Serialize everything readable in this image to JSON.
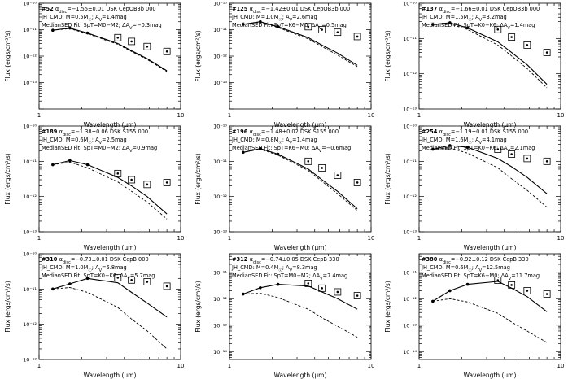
{
  "common": {
    "xlabel": "Wavelength (μm)",
    "ylabel": "Flux (ergs/cm²/s)",
    "xlim": [
      1,
      10
    ],
    "xticks": [
      "1",
      "10"
    ]
  },
  "chart_data": [
    {
      "type": "line",
      "panel": 1,
      "id": "#52",
      "line1": "α_disc=−1.55±0.01 DSK CepOB3b 000",
      "line2": "JH_CMD: M=0.5M☉; A_V=1.4mag",
      "line3": "MedianSED Fit: SpT=M0−M2; ΔA_V=−0.3mag",
      "ylim_exp": [
        -14,
        -10
      ],
      "yticks": [
        "10⁻¹⁰",
        "10⁻¹¹",
        "10⁻¹²",
        "10⁻¹³"
      ],
      "series": [
        {
          "name": "Observed SED",
          "style": "solid",
          "x": [
            1.25,
            1.65,
            2.2,
            3.6,
            4.5,
            5.8,
            8.0
          ],
          "y": [
            9.5e-12,
            1.15e-11,
            7.5e-12,
            3e-12,
            1.6e-12,
            8e-13,
            2.8e-13
          ]
        },
        {
          "name": "Median SED fit",
          "style": "dashed",
          "x": [
            1.25,
            1.65,
            2.2,
            3.6,
            4.5,
            5.8,
            8.0
          ],
          "y": [
            9.5e-12,
            1.1e-11,
            7e-12,
            2.8e-12,
            1.5e-12,
            7.5e-13,
            2.6e-13
          ]
        },
        {
          "name": "Excess points",
          "style": "box",
          "x": [
            3.6,
            4.5,
            5.8,
            8.0
          ],
          "y": [
            5e-12,
            3.6e-12,
            2.3e-12,
            1.5e-12
          ]
        }
      ]
    },
    {
      "type": "line",
      "panel": 2,
      "id": "#125",
      "line1": "α_disc=−1.42±0.01 DSK CepOB3b 000",
      "line2": "JH_CMD: M=1.0M☉; A_V=2.6mag",
      "line3": "MedianSED Fit: SpT=K6−M0; ΔA_V=0.5mag",
      "ylim_exp": [
        -14,
        -10
      ],
      "yticks": [
        "10⁻¹⁰",
        "10⁻¹¹",
        "10⁻¹²",
        "10⁻¹³"
      ],
      "series": [
        {
          "name": "Observed SED",
          "style": "solid",
          "x": [
            1.25,
            1.65,
            2.2,
            3.6,
            4.5,
            5.8,
            8.0
          ],
          "y": [
            1.6e-11,
            2e-11,
            1.3e-11,
            5e-12,
            2.6e-12,
            1.3e-12,
            4.5e-13
          ]
        },
        {
          "name": "Median SED fit",
          "style": "dashed",
          "x": [
            1.25,
            1.65,
            2.2,
            3.6,
            4.5,
            5.8,
            8.0
          ],
          "y": [
            1.6e-11,
            1.9e-11,
            1.2e-11,
            4.5e-12,
            2.3e-12,
            1.1e-12,
            4e-13
          ]
        },
        {
          "name": "Excess points",
          "style": "box",
          "x": [
            3.6,
            4.5,
            5.8,
            8.0
          ],
          "y": [
            1.3e-11,
            1e-11,
            8e-12,
            5.5e-12
          ]
        }
      ]
    },
    {
      "type": "line",
      "panel": 3,
      "id": "#137",
      "line1": "α_disc=−1.66±0.01 DSK CepOB3b 000",
      "line2": "JH_CMD: M=1.5M☉; A_V=3.2mag",
      "line3": "MedianSED Fit: SpT=K0−K6; ΔA_V=1.4mag",
      "ylim_exp": [
        -13,
        -10
      ],
      "yticks": [
        "10⁻¹⁰",
        "10⁻¹¹",
        "10⁻¹²",
        "10⁻¹³"
      ],
      "series": [
        {
          "name": "Observed SED",
          "style": "solid",
          "x": [
            1.25,
            1.65,
            2.2,
            3.6,
            4.5,
            5.8,
            8.0
          ],
          "y": [
            2.5e-11,
            2.8e-11,
            2e-11,
            8e-12,
            4e-12,
            1.8e-12,
            5e-13
          ]
        },
        {
          "name": "Median SED fit",
          "style": "dashed",
          "x": [
            1.25,
            1.65,
            2.2,
            3.6,
            4.5,
            5.8,
            8.0
          ],
          "y": [
            2.5e-11,
            2.6e-11,
            1.8e-11,
            6.5e-12,
            3.2e-12,
            1.4e-12,
            4e-13
          ]
        },
        {
          "name": "Excess points",
          "style": "box",
          "x": [
            3.6,
            4.5,
            5.8,
            8.0
          ],
          "y": [
            1.8e-11,
            1.1e-11,
            6.5e-12,
            4e-12
          ]
        }
      ]
    },
    {
      "type": "line",
      "panel": 4,
      "id": "#189",
      "line1": "α_disc=−1.38±0.06 DSK S155 000",
      "line2": "JH_CMD: M=0.6M☉; A_V=2.5mag",
      "line3": "MedianSED Fit: SpT=M0−M2; ΔA_V=0.9mag",
      "ylim_exp": [
        -13,
        -10
      ],
      "yticks": [
        "10⁻¹⁰",
        "10⁻¹¹",
        "10⁻¹²",
        "10⁻¹³"
      ],
      "series": [
        {
          "name": "Observed SED",
          "style": "solid",
          "x": [
            1.25,
            1.65,
            2.2,
            3.6,
            4.5,
            5.8,
            8.0
          ],
          "y": [
            8e-12,
            1.05e-11,
            8e-12,
            3.5e-12,
            2e-12,
            1e-12,
            3.2e-13
          ]
        },
        {
          "name": "Median SED fit",
          "style": "dashed",
          "x": [
            1.25,
            1.65,
            2.2,
            3.6,
            4.5,
            5.8,
            8.0
          ],
          "y": [
            8e-12,
            9.5e-12,
            6.5e-12,
            2.6e-12,
            1.4e-12,
            7e-13,
            2.3e-13
          ]
        },
        {
          "name": "Excess points",
          "style": "box",
          "x": [
            3.6,
            4.5,
            5.8,
            8.0
          ],
          "y": [
            4.5e-12,
            3e-12,
            2.2e-12,
            2.5e-12
          ]
        }
      ]
    },
    {
      "type": "line",
      "panel": 5,
      "id": "#196",
      "line1": "α_disc=−1.48±0.02 DSK S155 000",
      "line2": "JH_CMD: M=0.8M☉; A_V=1.4mag",
      "line3": "MedianSED Fit: SpT=K6−M0; ΔA_V=−0.6mag",
      "ylim_exp": [
        -13,
        -10
      ],
      "yticks": [
        "10⁻¹⁰",
        "10⁻¹¹",
        "10⁻¹²",
        "10⁻¹³"
      ],
      "series": [
        {
          "name": "Observed SED",
          "style": "solid",
          "x": [
            1.25,
            1.65,
            2.2,
            3.6,
            4.5,
            5.8,
            8.0
          ],
          "y": [
            1.8e-11,
            2.3e-11,
            1.6e-11,
            6e-12,
            3e-12,
            1.4e-12,
            4.5e-13
          ]
        },
        {
          "name": "Median SED fit",
          "style": "dashed",
          "x": [
            1.25,
            1.65,
            2.2,
            3.6,
            4.5,
            5.8,
            8.0
          ],
          "y": [
            1.8e-11,
            2.2e-11,
            1.5e-11,
            5.5e-12,
            2.7e-12,
            1.2e-12,
            4e-13
          ]
        },
        {
          "name": "Excess points",
          "style": "box",
          "x": [
            3.6,
            4.5,
            5.8,
            8.0
          ],
          "y": [
            1e-11,
            6.5e-12,
            4e-12,
            2.5e-12
          ]
        }
      ]
    },
    {
      "type": "line",
      "panel": 6,
      "id": "#254",
      "line1": "α_disc=−1.19±0.01 DSK S155 000",
      "line2": "JH_CMD: M=1.6M☉; A_V=4.1mag",
      "line3": "MedianSED Fit: SpT=K0−K6; ΔA_V=2.1mag",
      "ylim_exp": [
        -13,
        -10
      ],
      "yticks": [
        "10⁻¹⁰",
        "10⁻¹¹",
        "10⁻¹²",
        "10⁻¹³"
      ],
      "series": [
        {
          "name": "Observed SED",
          "style": "solid",
          "x": [
            1.25,
            1.65,
            2.2,
            3.6,
            4.5,
            5.8,
            8.0
          ],
          "y": [
            2.2e-11,
            2.8e-11,
            2.5e-11,
            1.2e-11,
            7e-12,
            3.5e-12,
            1.2e-12
          ]
        },
        {
          "name": "Median SED fit",
          "style": "dashed",
          "x": [
            1.25,
            1.65,
            2.2,
            3.6,
            4.5,
            5.8,
            8.0
          ],
          "y": [
            2.2e-11,
            2.4e-11,
            1.7e-11,
            6.5e-12,
            3.2e-12,
            1.5e-12,
            5e-13
          ]
        },
        {
          "name": "Excess points",
          "style": "box",
          "x": [
            3.6,
            4.5,
            5.8,
            8.0
          ],
          "y": [
            2.2e-11,
            1.6e-11,
            1.2e-11,
            1e-11
          ]
        }
      ]
    },
    {
      "type": "line",
      "panel": 7,
      "id": "#310",
      "line1": "α_disc=−0.73±0.01 DSK CepB 000",
      "line2": "JH_CMD: M=1.0M☉; A_V=5.8mag",
      "line3": "MedianSED Fit: SpT=K0−K6; ΔA_V=5.7mag",
      "ylim_exp": [
        -13,
        -10
      ],
      "yticks": [
        "10⁻¹⁰",
        "10⁻¹¹",
        "10⁻¹²",
        "10⁻¹³"
      ],
      "series": [
        {
          "name": "Observed SED",
          "style": "solid",
          "x": [
            1.25,
            1.65,
            2.2,
            3.6,
            4.5,
            5.8,
            8.0
          ],
          "y": [
            1e-11,
            1.4e-11,
            2e-11,
            1.5e-11,
            8e-12,
            4e-12,
            1.6e-12
          ]
        },
        {
          "name": "Median SED fit",
          "style": "dashed",
          "x": [
            1.25,
            1.65,
            2.2,
            3.6,
            4.5,
            5.8,
            8.0
          ],
          "y": [
            1e-11,
            1.1e-11,
            8e-12,
            3e-12,
            1.4e-12,
            6.5e-13,
            2e-13
          ]
        },
        {
          "name": "Excess points",
          "style": "box",
          "x": [
            3.6,
            4.5,
            5.8,
            8.0
          ],
          "y": [
            2.1e-11,
            1.8e-11,
            1.6e-11,
            1.2e-11
          ]
        }
      ]
    },
    {
      "type": "line",
      "panel": 8,
      "id": "#312",
      "line1": "α_disc=−0.74±0.05 DSK CepB 330",
      "line2": "JH_CMD: M=0.4M☉; A_V=8.3mag",
      "line3": "MedianSED Fit: SpT=M0−M2; ΔA_V=7.4mag",
      "ylim_exp": [
        -14.3,
        -10.3
      ],
      "yticks": [
        "10⁻¹¹",
        "10⁻¹²",
        "10⁻¹³",
        "10⁻¹⁴"
      ],
      "series": [
        {
          "name": "Observed SED",
          "style": "solid",
          "x": [
            1.25,
            1.65,
            2.2,
            3.6,
            4.5,
            5.8,
            8.0
          ],
          "y": [
            1.5e-12,
            2.6e-12,
            3.5e-12,
            3e-12,
            1.8e-12,
            1e-12,
            4e-13
          ]
        },
        {
          "name": "Median SED fit",
          "style": "dashed",
          "x": [
            1.25,
            1.65,
            2.2,
            3.6,
            4.5,
            5.8,
            8.0
          ],
          "y": [
            1.5e-12,
            1.6e-12,
            1.1e-12,
            4e-13,
            1.9e-13,
            9e-14,
            3.5e-14
          ]
        },
        {
          "name": "Excess points",
          "style": "box",
          "x": [
            3.6,
            4.5,
            5.8,
            8.0
          ],
          "y": [
            3.8e-12,
            2.5e-12,
            1.8e-12,
            1.3e-12
          ]
        }
      ]
    },
    {
      "type": "line",
      "panel": 9,
      "id": "#380",
      "line1": "α_disc=−0.92±0.12 DSK CepB 330",
      "line2": "JH_CMD: M=0.6M☉; A_V=12.5mag",
      "line3": "MedianSED Fit: SpT=K6−M0; ΔA_V=11.7mag",
      "ylim_exp": [
        -14.3,
        -10.3
      ],
      "yticks": [
        "10⁻¹¹",
        "10⁻¹²",
        "10⁻¹³",
        "10⁻¹⁴"
      ],
      "series": [
        {
          "name": "Observed SED",
          "style": "solid",
          "x": [
            1.25,
            1.65,
            2.2,
            3.6,
            4.5,
            5.8,
            8.0
          ],
          "y": [
            8e-13,
            2e-12,
            3.5e-12,
            4.5e-12,
            2.5e-12,
            1.2e-12,
            3.2e-13
          ]
        },
        {
          "name": "Median SED fit",
          "style": "dashed",
          "x": [
            1.25,
            1.65,
            2.2,
            3.6,
            4.5,
            5.8,
            8.0
          ],
          "y": [
            8e-13,
            1e-12,
            7.5e-13,
            2.8e-13,
            1.3e-13,
            6e-14,
            2.2e-14
          ]
        },
        {
          "name": "Excess points",
          "style": "box",
          "x": [
            3.6,
            4.5,
            5.8,
            8.0
          ],
          "y": [
            5e-12,
            3.3e-12,
            2e-12,
            1.5e-12
          ]
        }
      ]
    }
  ]
}
